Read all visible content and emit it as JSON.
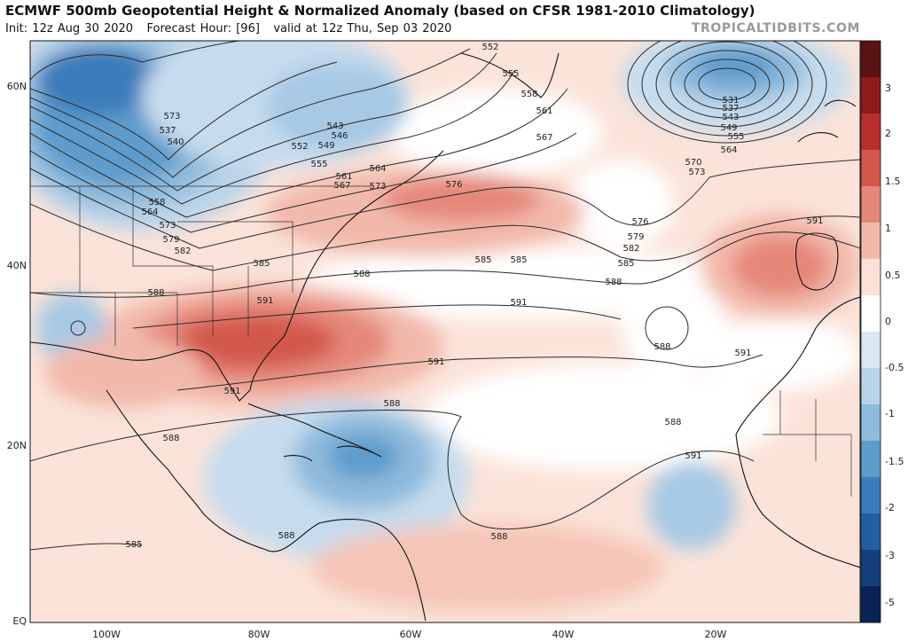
{
  "header": {
    "title": "ECMWF 500mb Geopotential Height & Normalized Anomaly (based on CFSR 1981-2010 Climatology)",
    "init": "Init: 12z Aug 30 2020",
    "forecast_hour": "Forecast Hour: [96]",
    "valid": "valid at 12z Thu, Sep 03 2020",
    "site": "TROPICALTIDBITS.COM"
  },
  "axes": {
    "lat_labels": [
      "60N",
      "40N",
      "20N",
      "EQ"
    ],
    "lon_labels": [
      "100W",
      "80W",
      "60W",
      "40W",
      "20W"
    ]
  },
  "colorbar": {
    "labels": [
      "3",
      "2",
      "1.5",
      "1",
      "0.5",
      "0",
      "-0.5",
      "-1",
      "-1.5",
      "-2",
      "-3",
      "-5"
    ],
    "colors": [
      "#5a1212",
      "#8e1c1c",
      "#b8302e",
      "#d2584c",
      "#e5887a",
      "#f2b9ab",
      "#fbe1d7",
      "#ffffff",
      "#dbe8f3",
      "#b9d4ea",
      "#8fbadc",
      "#5e9ccc",
      "#3b7cba",
      "#245ea0",
      "#153f7a",
      "#0a2354"
    ]
  },
  "contours": {
    "labels": [
      "552",
      "555",
      "558",
      "561",
      "567",
      "570",
      "573",
      "531",
      "537",
      "543",
      "549",
      "555",
      "564",
      "573",
      "537",
      "540",
      "543",
      "546",
      "549",
      "552",
      "555",
      "561",
      "564",
      "567",
      "573",
      "576",
      "558",
      "564",
      "573",
      "579",
      "582",
      "585",
      "588",
      "591",
      "576",
      "579",
      "582",
      "585",
      "588",
      "591",
      "591",
      "585",
      "588",
      "591",
      "591",
      "591",
      "588",
      "588",
      "588",
      "588",
      "591",
      "588",
      "588",
      "585",
      "585",
      "588",
      "585",
      "588"
    ]
  }
}
